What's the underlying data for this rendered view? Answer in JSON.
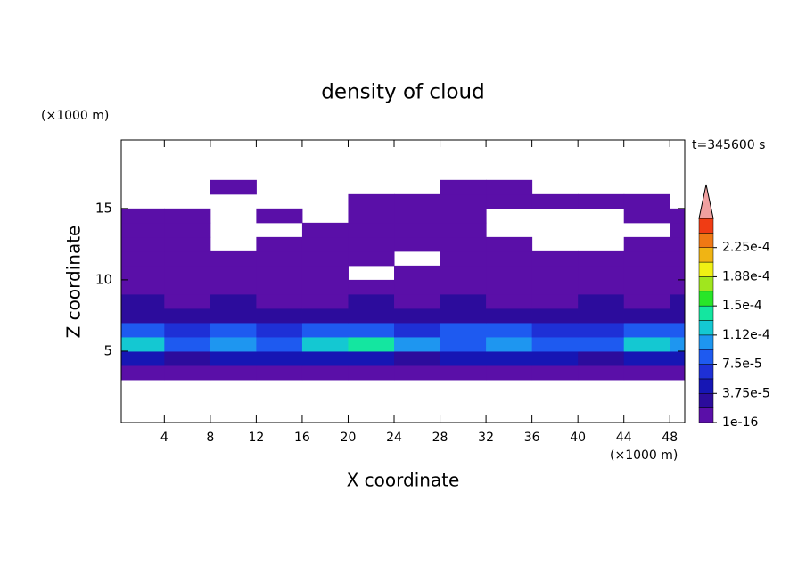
{
  "chart_data": {
    "type": "contour",
    "title": "density of cloud",
    "xlabel": "X coordinate",
    "ylabel": "Z coordinate",
    "xunit": "(×1000 m)",
    "yunit": "(×1000 m)",
    "annotation": "t=345600 s",
    "xlim": [
      0.25,
      49.3
    ],
    "ylim": [
      0,
      19.8
    ],
    "xticks": [
      4,
      8,
      12,
      16,
      20,
      24,
      28,
      32,
      36,
      40,
      44,
      48
    ],
    "yticks": [
      5,
      10,
      15
    ],
    "x": [
      2,
      6,
      10,
      14,
      18,
      22,
      26,
      30,
      34,
      38,
      42,
      46,
      50
    ],
    "y": [
      3.5,
      4.5,
      5.5,
      6.5,
      7.5,
      8.5,
      9.5,
      10.5,
      11.5,
      12.5,
      13.5,
      14.5,
      15.5,
      16.5
    ],
    "z": [
      [
        1e-06,
        1e-06,
        1e-06,
        1e-06,
        1e-06,
        1e-06,
        1e-06,
        1e-06,
        1e-06,
        1e-06,
        1e-06,
        1e-06,
        1e-06
      ],
      [
        4e-05,
        3e-05,
        5e-05,
        4e-05,
        4e-05,
        5e-05,
        3e-05,
        4e-05,
        5e-05,
        4e-05,
        3e-05,
        5e-05,
        4e-05
      ],
      [
        0.00013,
        9e-05,
        0.0001,
        8e-05,
        0.00012,
        0.00014,
        0.0001,
        8e-05,
        0.00011,
        9e-05,
        8e-05,
        0.00013,
        0.0001
      ],
      [
        9e-05,
        7e-05,
        8e-05,
        6e-05,
        8e-05,
        9e-05,
        7e-05,
        8e-05,
        9e-05,
        7e-05,
        6e-05,
        9e-05,
        8e-05
      ],
      [
        3e-05,
        2.5e-05,
        3e-05,
        2e-05,
        2.5e-05,
        3e-05,
        2e-05,
        2.5e-05,
        3e-05,
        2e-05,
        2.5e-05,
        3e-05,
        2.5e-05
      ],
      [
        2e-05,
        1e-05,
        2e-05,
        8e-06,
        1e-05,
        2e-05,
        1e-05,
        2e-05,
        1e-05,
        8e-06,
        2e-05,
        1e-05,
        2e-05
      ],
      [
        1e-06,
        5e-06,
        1e-06,
        1e-06,
        5e-06,
        1e-06,
        1e-06,
        5e-06,
        1e-06,
        1e-06,
        5e-06,
        1e-06,
        1e-06
      ],
      [
        1e-06,
        1e-06,
        1e-06,
        1e-06,
        1e-06,
        null,
        1e-06,
        1e-06,
        1e-06,
        1e-06,
        1e-06,
        1e-06,
        1e-06
      ],
      [
        1e-06,
        1e-06,
        1e-06,
        1e-06,
        1e-06,
        1e-06,
        null,
        1e-06,
        1e-06,
        1e-06,
        1e-06,
        1e-06,
        1e-06
      ],
      [
        1e-06,
        1e-06,
        null,
        1e-06,
        1e-06,
        1e-06,
        1e-06,
        1e-06,
        1e-06,
        null,
        null,
        1e-06,
        1e-06
      ],
      [
        1e-06,
        1e-06,
        null,
        null,
        1e-06,
        1e-06,
        1e-06,
        1e-06,
        null,
        null,
        null,
        null,
        1e-06
      ],
      [
        1e-06,
        1e-06,
        null,
        1e-06,
        null,
        1e-06,
        1e-06,
        1e-06,
        null,
        null,
        null,
        1e-06,
        1e-06
      ],
      [
        null,
        null,
        null,
        null,
        null,
        1e-06,
        1e-06,
        1e-06,
        1e-06,
        1e-06,
        1e-06,
        1e-06,
        null
      ],
      [
        null,
        null,
        1e-06,
        null,
        null,
        null,
        null,
        1e-06,
        1e-06,
        null,
        null,
        null,
        null
      ]
    ],
    "levels": [
      1e-16,
      1.875e-05,
      3.75e-05,
      5.625e-05,
      7.5e-05,
      9.375e-05,
      0.0001125,
      0.00013125,
      0.00015,
      0.00016875,
      0.0001875,
      0.00020625,
      0.000225,
      0.00024375,
      0.0002625
    ],
    "colors": [
      "#5a0fa8",
      "#2c0c9c",
      "#1616b4",
      "#1e30d6",
      "#1e5af0",
      "#1e96f0",
      "#14c8d2",
      "#14e6a0",
      "#28e628",
      "#a0e61e",
      "#f0f014",
      "#f0b414",
      "#f07814",
      "#f03c14"
    ],
    "extend_color": "#f0a0a0",
    "colorbar_ticks": [
      {
        "value": 1e-16,
        "label": "1e-16"
      },
      {
        "value": 3.75e-05,
        "label": "3.75e-5"
      },
      {
        "value": 7.5e-05,
        "label": "7.5e-5"
      },
      {
        "value": 0.0001125,
        "label": "1.12e-4"
      },
      {
        "value": 0.00015,
        "label": "1.5e-4"
      },
      {
        "value": 0.0001875,
        "label": "1.88e-4"
      },
      {
        "value": 0.000225,
        "label": "2.25e-4"
      }
    ]
  }
}
